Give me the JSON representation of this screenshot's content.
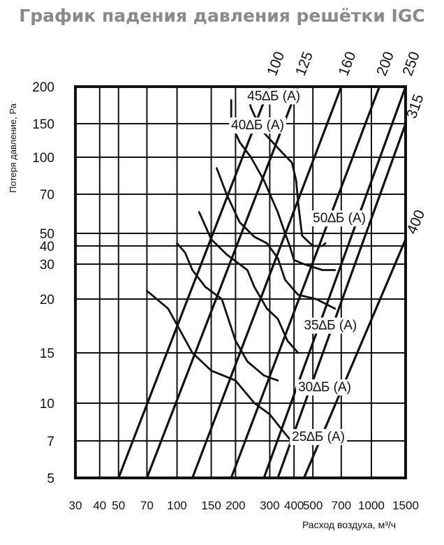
{
  "header": {
    "title": "График падения давления решётки IGC"
  },
  "chart_data": {
    "type": "line",
    "title": "График падения давления решётки IGC",
    "xlabel": "Расход воздуха, м³/ч",
    "ylabel": "Потеря давление, Ра",
    "x_scale": "log",
    "y_scale": "nonlinear",
    "grid": true,
    "x_ticks": [
      "30",
      "40",
      "50",
      "70",
      "100",
      "150",
      "200",
      "300",
      "400",
      "500",
      "700",
      "1000",
      "1500"
    ],
    "y_ticks": [
      "5",
      "7",
      "10",
      "15",
      "20",
      "30",
      "40",
      "50",
      "70",
      "100",
      "150",
      "200"
    ],
    "size_lines": [
      {
        "name": "100",
        "points": [
          [
            50,
            5
          ],
          [
            300,
            200
          ]
        ]
      },
      {
        "name": "125",
        "points": [
          [
            70,
            5
          ],
          [
            420,
            200
          ]
        ]
      },
      {
        "name": "160",
        "points": [
          [
            120,
            5
          ],
          [
            700,
            200
          ]
        ]
      },
      {
        "name": "200",
        "points": [
          [
            190,
            5
          ],
          [
            1100,
            200
          ]
        ]
      },
      {
        "name": "250",
        "points": [
          [
            280,
            5
          ],
          [
            1500,
            200
          ]
        ]
      },
      {
        "name": "315",
        "points": [
          [
            330,
            5
          ],
          [
            1500,
            150
          ]
        ]
      },
      {
        "name": "400",
        "points": [
          [
            450,
            5
          ],
          [
            1500,
            45
          ]
        ]
      }
    ],
    "noise_curves": [
      {
        "name": "45∆Б (А)",
        "points": [
          [
            230,
            190
          ],
          [
            240,
            170
          ],
          [
            270,
            140
          ],
          [
            310,
            120
          ],
          [
            350,
            105
          ],
          [
            390,
            95
          ],
          [
            410,
            80
          ],
          [
            420,
            65
          ],
          [
            440,
            48
          ],
          [
            500,
            40
          ],
          [
            560,
            40
          ],
          [
            580,
            42
          ]
        ]
      },
      {
        "name": "40∆Б (А)",
        "points": [
          [
            190,
            180
          ],
          [
            190,
            150
          ],
          [
            210,
            120
          ],
          [
            240,
            100
          ],
          [
            280,
            80
          ],
          [
            330,
            60
          ],
          [
            360,
            50
          ],
          [
            380,
            40
          ],
          [
            400,
            32
          ],
          [
            450,
            30
          ],
          [
            560,
            28
          ],
          [
            650,
            28
          ]
        ]
      },
      {
        "name": "50∆Б (А)",
        "points": [
          [
            160,
            90
          ],
          [
            180,
            70
          ],
          [
            210,
            55
          ],
          [
            250,
            47
          ],
          [
            290,
            42
          ],
          [
            330,
            33
          ],
          [
            360,
            25
          ],
          [
            420,
            21
          ],
          [
            520,
            20
          ],
          [
            650,
            19
          ]
        ]
      },
      {
        "name": "35∆Б (А)",
        "points": [
          [
            130,
            60
          ],
          [
            150,
            45
          ],
          [
            180,
            35
          ],
          [
            230,
            28
          ],
          [
            250,
            23
          ],
          [
            290,
            19
          ],
          [
            330,
            18
          ],
          [
            370,
            16
          ],
          [
            420,
            15
          ]
        ]
      },
      {
        "name": "30∆Б (А)",
        "points": [
          [
            100,
            42
          ],
          [
            110,
            36
          ],
          [
            120,
            28
          ],
          [
            140,
            23
          ],
          [
            170,
            20
          ],
          [
            200,
            16
          ],
          [
            230,
            14
          ],
          [
            280,
            12.5
          ],
          [
            330,
            12
          ]
        ]
      },
      {
        "name": "25∆Б (А)",
        "points": [
          [
            70,
            22
          ],
          [
            90,
            19
          ],
          [
            120,
            15
          ],
          [
            150,
            13
          ],
          [
            200,
            12
          ],
          [
            250,
            10
          ],
          [
            300,
            9
          ],
          [
            360,
            7.5
          ],
          [
            400,
            6.8
          ]
        ]
      }
    ],
    "noise_label_anchors": [
      [
        230,
        180
      ],
      [
        190,
        140
      ],
      [
        500,
        55
      ],
      [
        450,
        17
      ],
      [
        420,
        11
      ],
      [
        390,
        7
      ]
    ],
    "colors": {
      "lines": "#111111",
      "title": "#8a8a8a",
      "background": "#ffffff"
    }
  }
}
